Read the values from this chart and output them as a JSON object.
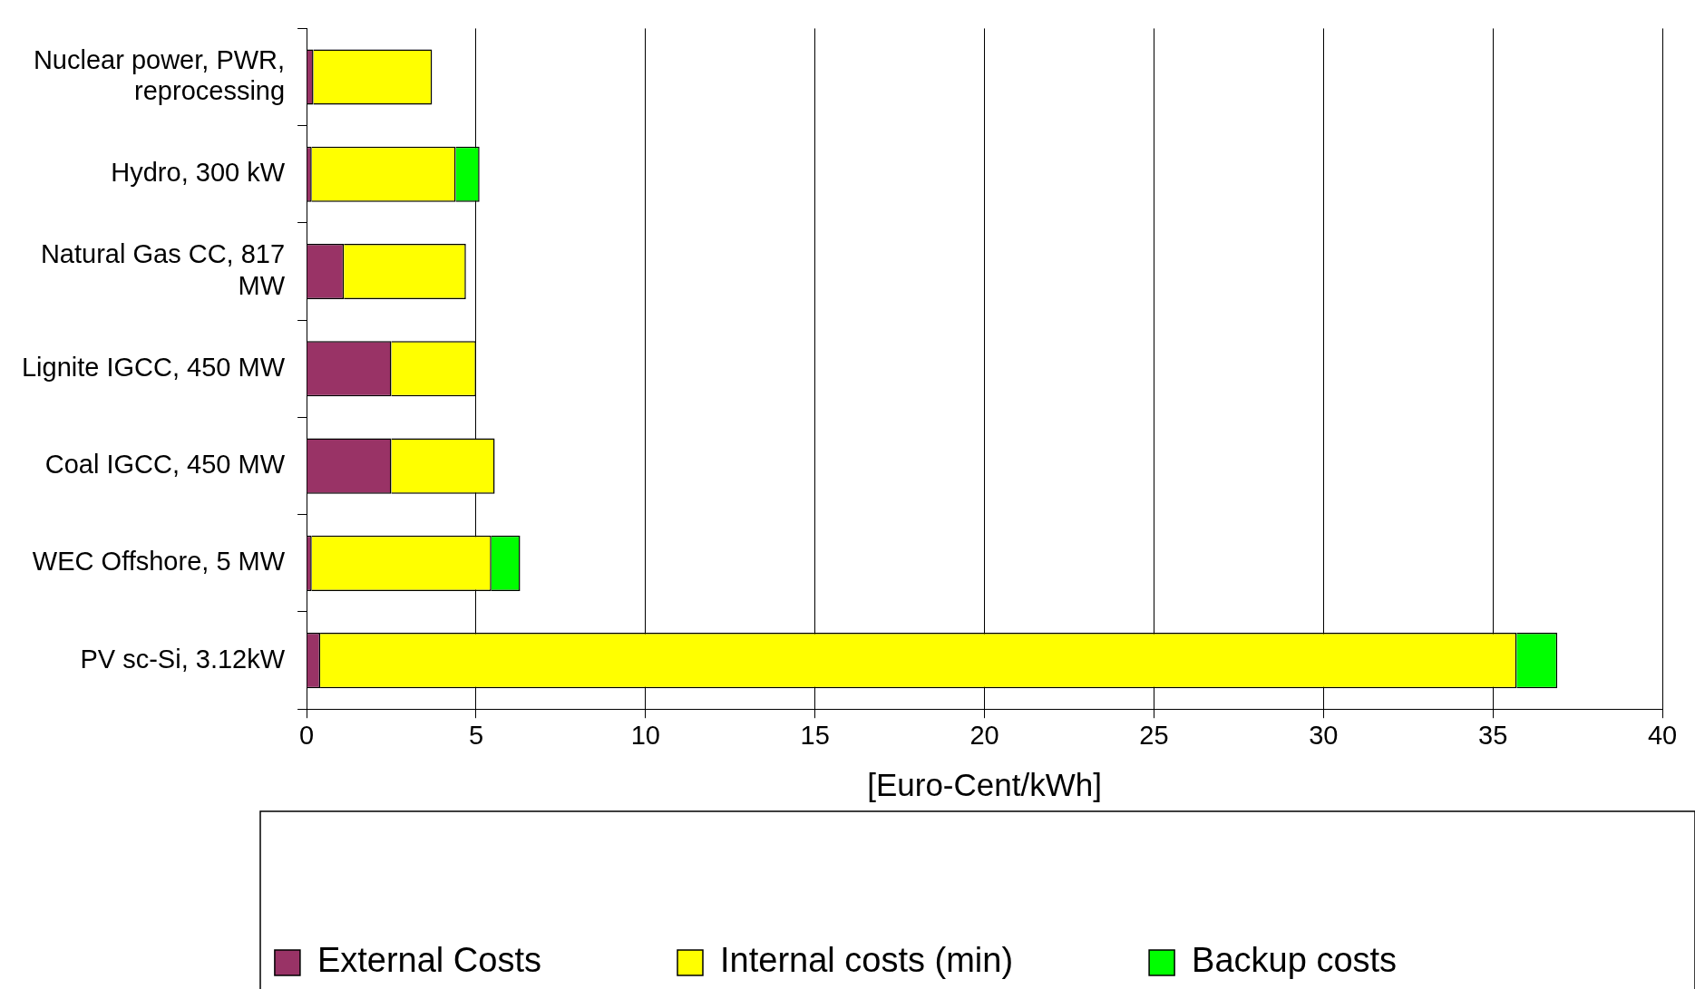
{
  "chart_data": {
    "type": "bar",
    "orientation": "horizontal",
    "stacked": true,
    "xlabel": "[Euro-Cent/kWh]",
    "categories": [
      "Nuclear power, PWR, reprocessing",
      "Hydro, 300 kW",
      "Natural Gas CC, 817 MW",
      "Lignite IGCC, 450 MW",
      "Coal IGCC, 450 MW",
      "WEC Offshore, 5 MW",
      "PV sc-Si, 3.12kW"
    ],
    "series": [
      {
        "name": "External Costs",
        "color": "#993366",
        "values": [
          0.2,
          0.15,
          1.1,
          2.5,
          2.5,
          0.15,
          0.4
        ]
      },
      {
        "name": "Internal costs (min)",
        "color": "#ffff00",
        "values": [
          3.5,
          4.25,
          3.6,
          2.5,
          3.05,
          5.3,
          35.3
        ]
      },
      {
        "name": "Backup costs",
        "color": "#00ff00",
        "values": [
          null,
          0.7,
          null,
          null,
          null,
          0.85,
          1.2
        ]
      }
    ],
    "xlim": [
      0,
      40
    ],
    "xticks": [
      0,
      5,
      10,
      15,
      20,
      25,
      30,
      35,
      40
    ],
    "grid": "x",
    "legend": "bottom"
  }
}
